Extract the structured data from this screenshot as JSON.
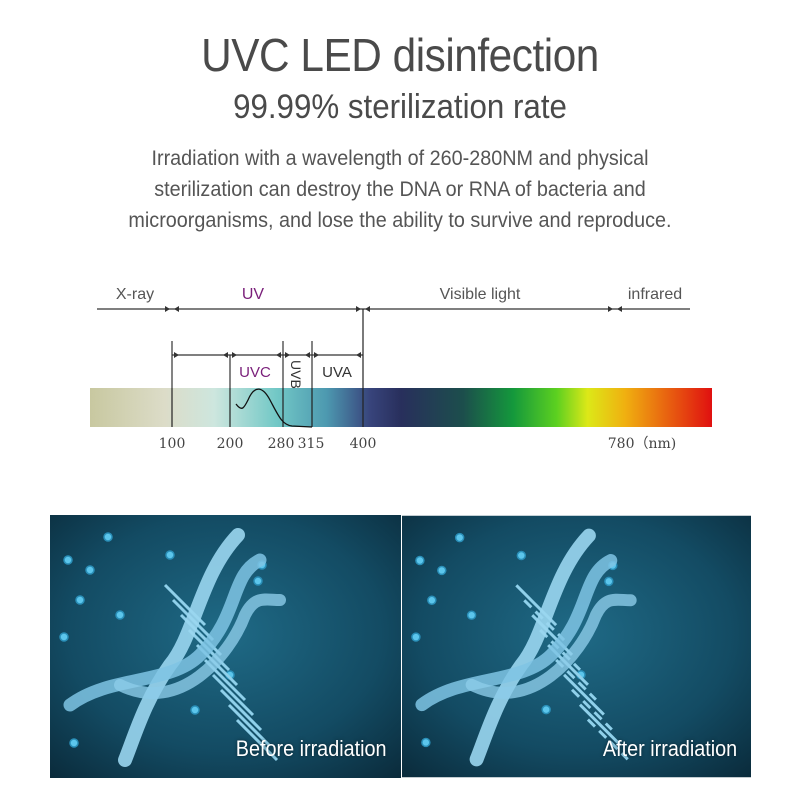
{
  "header": {
    "title": "UVC LED disinfection",
    "subtitle": "99.99% sterilization rate",
    "description": [
      "Irradiation with a wavelength of 260-280NM and physical",
      "sterilization can destroy the DNA or RNA of bacteria and",
      "microorganisms, and lose the ability to survive and reproduce."
    ]
  },
  "spectrum": {
    "regions": {
      "xray": "X-ray",
      "uv": "UV",
      "visible": "Visible light",
      "infrared": "infrared"
    },
    "bands": {
      "uvc": "UVC",
      "uvb": "UVB",
      "uva": "UVA"
    },
    "ticks": [
      "100",
      "200",
      "280",
      "315",
      "400",
      "780（nm)"
    ],
    "colors": {
      "uv_label": "#7a1f7a",
      "line": "#333333"
    }
  },
  "panels": {
    "before": "Before irradiation",
    "after": "After irradiation"
  }
}
